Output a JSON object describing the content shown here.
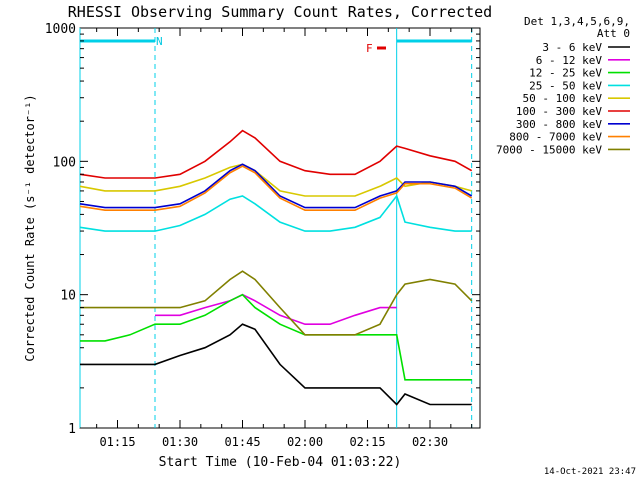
{
  "chart_data": {
    "type": "line",
    "title": "RHESSI Observing Summary Count Rates, Corrected",
    "xlabel": "Start Time (10-Feb-04 01:03:22)",
    "ylabel": "Corrected Count Rate (s⁻¹ detector⁻¹)",
    "y_scale": "log",
    "ylim": [
      1,
      1000
    ],
    "xlim": [
      "01:06",
      "02:42"
    ],
    "x_ticks": [
      "01:15",
      "01:30",
      "01:45",
      "02:00",
      "02:15",
      "02:30"
    ],
    "y_ticks": [
      "1",
      "10",
      "100",
      "1000"
    ],
    "legend_header": [
      "Det 1,3,4,5,6,9,",
      "Att 0"
    ],
    "legend_position": "right",
    "annotations": {
      "night_label": "N",
      "flare_label": "F"
    },
    "footer_timestamp": "14-Oct-2021 23:47",
    "night_intervals": [
      [
        "01:06",
        "01:24"
      ],
      [
        "02:22",
        "02:40"
      ]
    ],
    "flare_interval": [
      "02:19",
      "02:20"
    ],
    "x": [
      "01:06",
      "01:12",
      "01:18",
      "01:24",
      "01:30",
      "01:36",
      "01:42",
      "01:45",
      "01:48",
      "01:54",
      "02:00",
      "02:06",
      "02:12",
      "02:18",
      "02:22",
      "02:24",
      "02:30",
      "02:36",
      "02:40"
    ],
    "series": [
      {
        "name": "3 - 6 keV",
        "color": "#000000",
        "values": [
          3,
          3,
          3,
          3,
          3.5,
          4,
          5,
          6,
          5.5,
          3,
          2,
          2,
          2,
          2,
          1.5,
          1.8,
          1.5,
          1.5,
          1.5
        ]
      },
      {
        "name": "6 - 12 keV",
        "color": "#e000e0",
        "values": [
          null,
          null,
          null,
          7,
          7,
          8,
          9,
          10,
          9,
          7,
          6,
          6,
          7,
          8,
          8,
          null,
          null,
          null,
          null
        ]
      },
      {
        "name": "12 - 25 keV",
        "color": "#00e000",
        "values": [
          4.5,
          4.5,
          5,
          6,
          6,
          7,
          9,
          10,
          8,
          6,
          5,
          5,
          5,
          5,
          5,
          2.3,
          2.3,
          2.3,
          2.3
        ]
      },
      {
        "name": "25 - 50 keV",
        "color": "#00e0e0",
        "values": [
          32,
          30,
          30,
          30,
          33,
          40,
          52,
          55,
          48,
          35,
          30,
          30,
          32,
          38,
          55,
          35,
          32,
          30,
          30
        ]
      },
      {
        "name": "50 - 100 keV",
        "color": "#d8c800",
        "values": [
          65,
          60,
          60,
          60,
          65,
          75,
          90,
          95,
          85,
          60,
          55,
          55,
          55,
          65,
          75,
          65,
          70,
          65,
          60
        ]
      },
      {
        "name": "100 - 300 keV",
        "color": "#e00000",
        "values": [
          80,
          75,
          75,
          75,
          80,
          100,
          140,
          170,
          150,
          100,
          85,
          80,
          80,
          100,
          130,
          125,
          110,
          100,
          85
        ]
      },
      {
        "name": "300 - 800 keV",
        "color": "#0000d0",
        "values": [
          48,
          45,
          45,
          45,
          48,
          60,
          85,
          95,
          85,
          55,
          45,
          45,
          45,
          55,
          60,
          70,
          70,
          65,
          55
        ]
      },
      {
        "name": "800 - 7000 keV",
        "color": "#ff8000",
        "values": [
          46,
          43,
          43,
          43,
          46,
          58,
          82,
          92,
          82,
          53,
          43,
          43,
          43,
          53,
          58,
          68,
          68,
          63,
          53
        ]
      },
      {
        "name": "7000 - 15000 keV",
        "color": "#808000",
        "values": [
          8,
          8,
          8,
          8,
          8,
          9,
          13,
          15,
          13,
          8,
          5,
          5,
          5,
          6,
          10,
          12,
          13,
          12,
          9
        ]
      }
    ]
  }
}
